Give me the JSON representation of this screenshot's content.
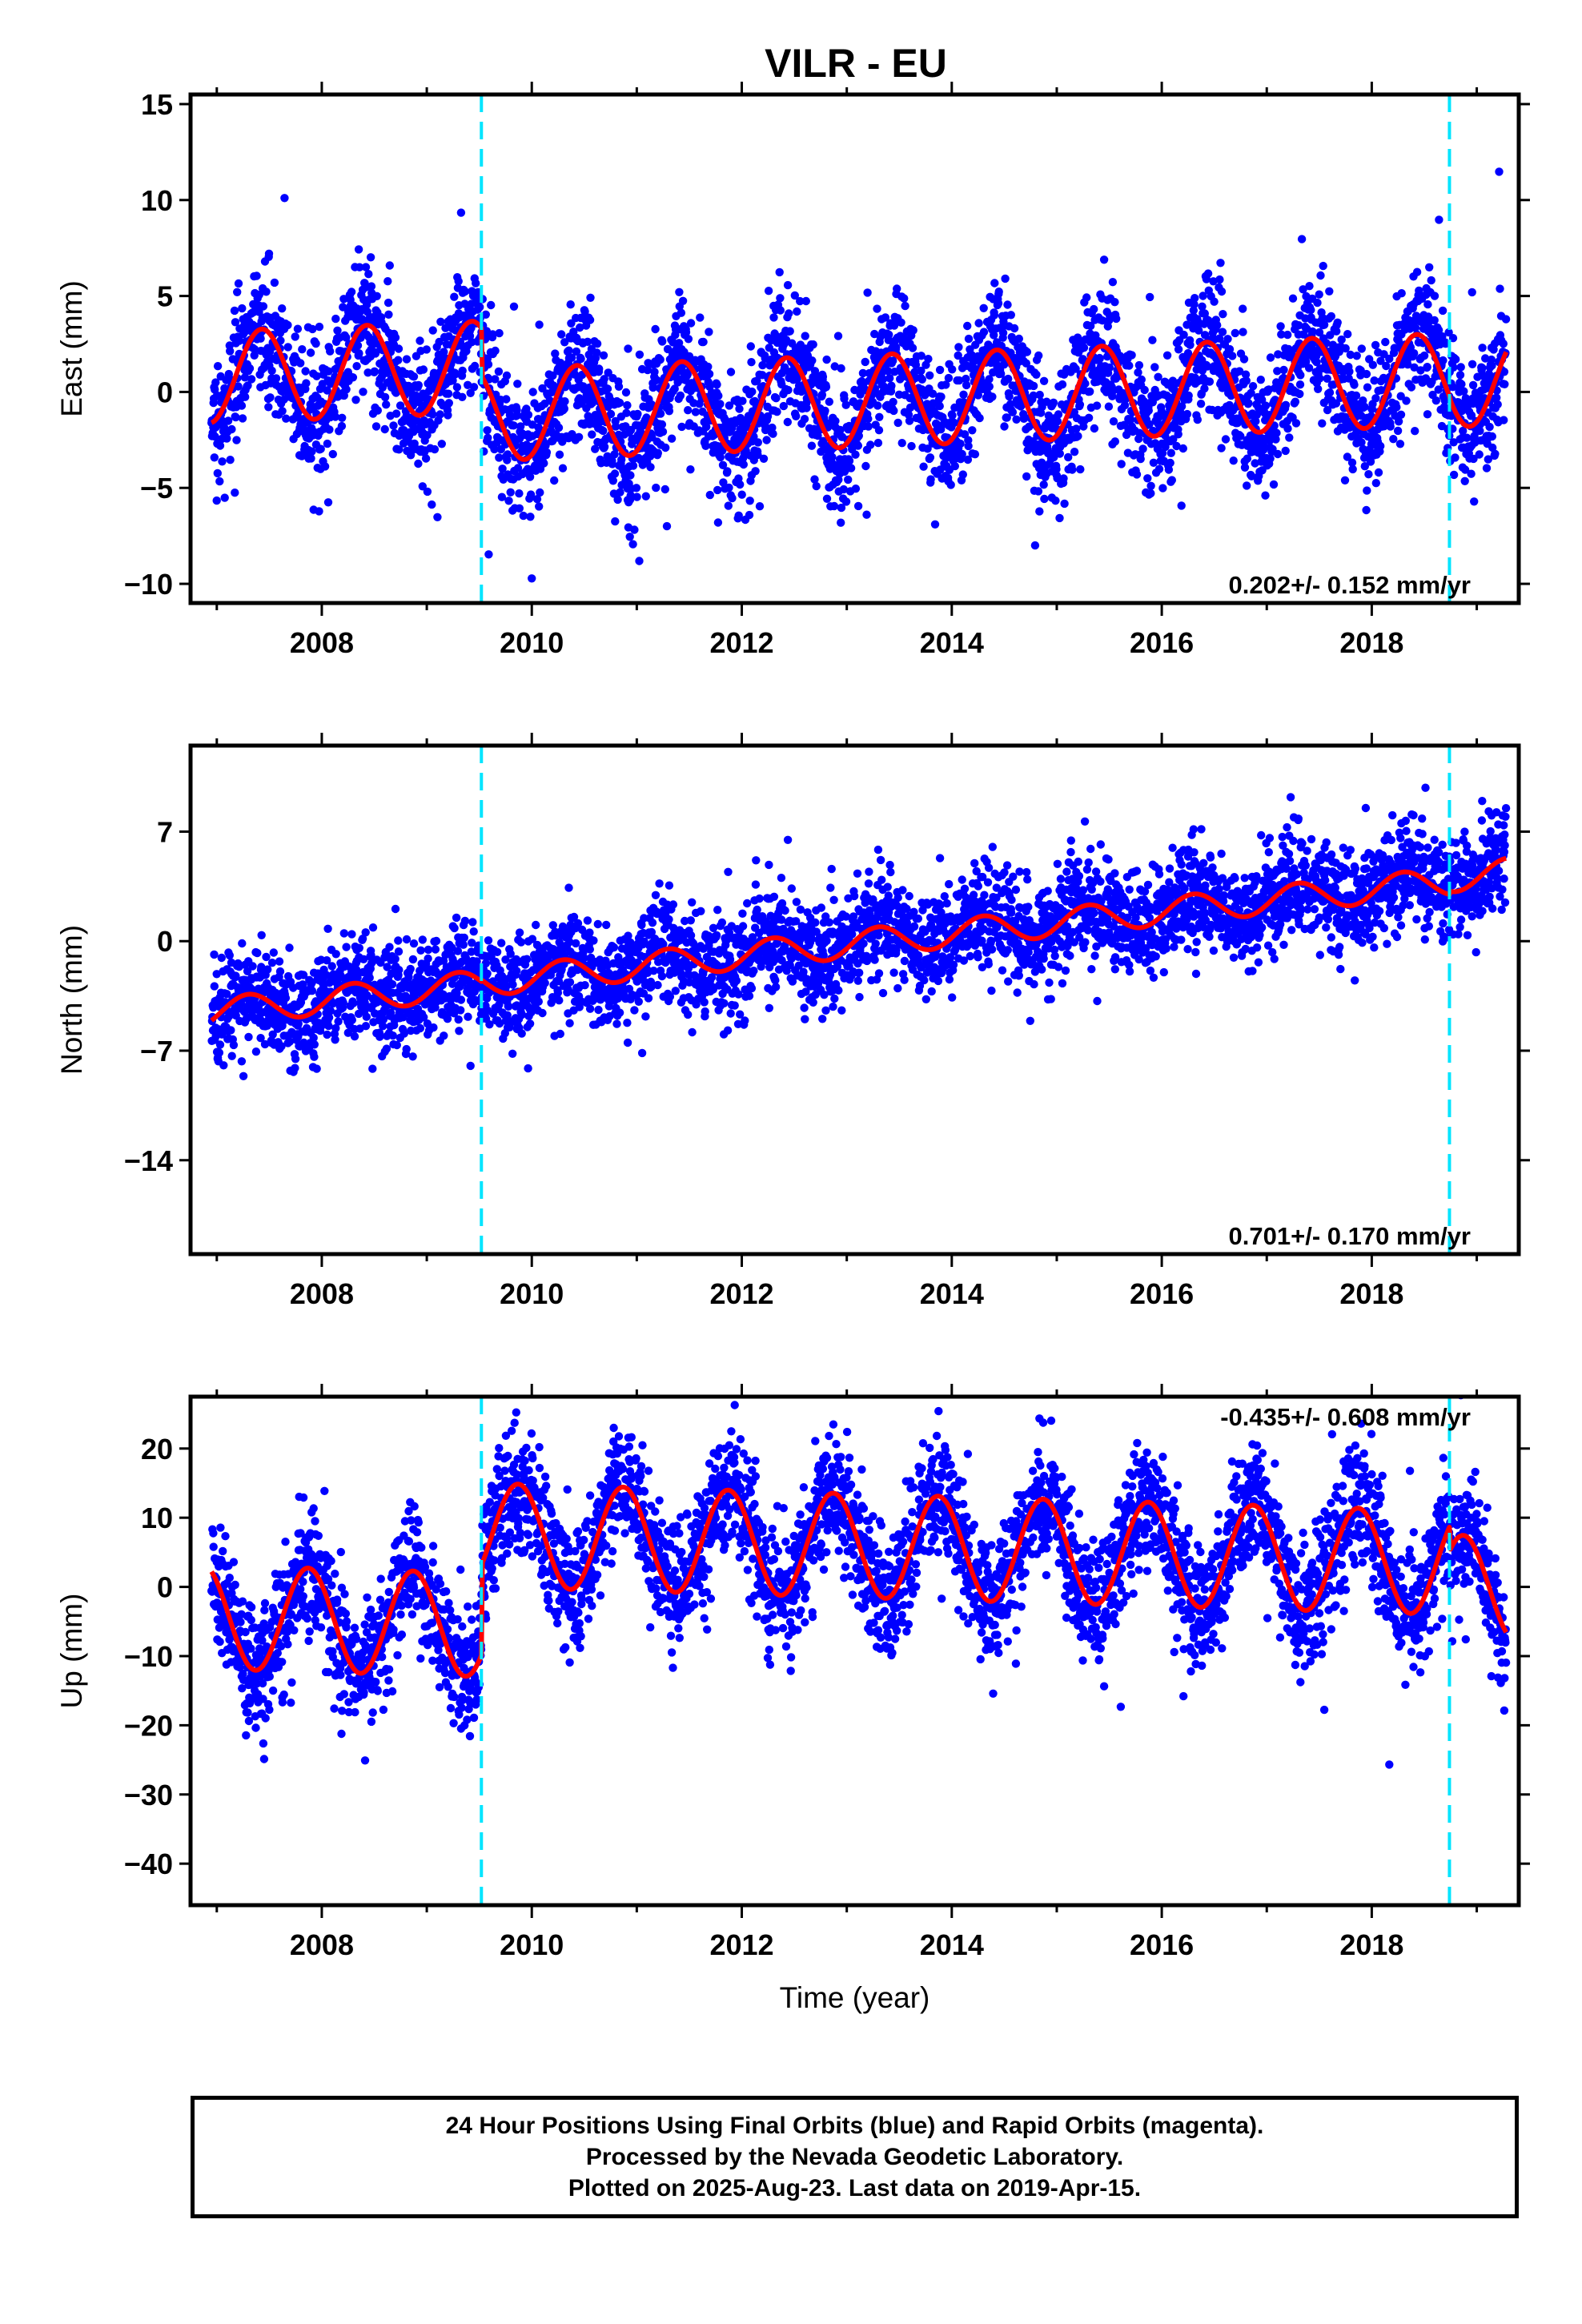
{
  "page": {
    "title": "VILR - EU"
  },
  "colors": {
    "points": "#0000ff",
    "model": "#ff0000",
    "breaks": "#00e5ff",
    "frame": "#000000"
  },
  "chart_data": [
    {
      "type": "scatter",
      "title": "VILR - EU",
      "ylabel": "East (mm)",
      "xlabel": "",
      "xlim": [
        2006.75,
        2019.4
      ],
      "ylim": [
        -11,
        15.5
      ],
      "yticks": [
        15,
        10,
        5,
        0,
        -5,
        -10
      ],
      "xticks": [
        2008,
        2010,
        2012,
        2014,
        2016,
        2018
      ],
      "breaks": [
        2009.52,
        2018.74
      ],
      "rate_text": "0.202+/- 0.152 mm/yr",
      "rate_position": "bottom-right",
      "model": {
        "name": "",
        "seg_offsets": [
          2.0,
          -0.5,
          -0.6
        ],
        "amplitude": 2.4,
        "trend": 0.202,
        "phase": 0.18,
        "noise": 1.7
      },
      "series": [
        {
          "name": "Final Orbits (blue)",
          "x_range": [
            2006.95,
            2019.28
          ],
          "y_approx": "seasonal + trend"
        }
      ]
    },
    {
      "type": "scatter",
      "title": "",
      "ylabel": "North (mm)",
      "xlabel": "",
      "xlim": [
        2006.75,
        2019.4
      ],
      "ylim": [
        -20,
        12.5
      ],
      "yticks": [
        7,
        0,
        -7,
        -14
      ],
      "xticks": [
        2008,
        2010,
        2012,
        2014,
        2016,
        2018
      ],
      "breaks": [
        2009.52,
        2018.74
      ],
      "rate_text": "0.701+/- 0.170 mm/yr",
      "rate_position": "bottom-right",
      "model": {
        "name": "",
        "seg_offsets": [
          -0.3,
          -0.2,
          0.0
        ],
        "amplitude": 0.9,
        "trend": 0.701,
        "phase": 0.05,
        "noise": 1.6
      },
      "series": [
        {
          "name": "Final Orbits (blue)",
          "x_range": [
            2006.95,
            2019.28
          ],
          "y_approx": "seasonal + trend"
        }
      ]
    },
    {
      "type": "scatter",
      "title": "",
      "ylabel": "Up (mm)",
      "xlabel": "Time (year)",
      "xlim": [
        2006.75,
        2019.4
      ],
      "ylim": [
        -46,
        27.5
      ],
      "yticks": [
        20,
        10,
        0,
        -10,
        -20,
        -30,
        -40
      ],
      "xticks": [
        2008,
        2010,
        2012,
        2014,
        2016,
        2018
      ],
      "breaks": [
        2009.52,
        2018.74
      ],
      "rate_text": "-0.435+/- 0.608 mm/yr",
      "rate_position": "top-right",
      "model": {
        "name": "",
        "seg_offsets": [
          -7.0,
          6.0,
          2.5
        ],
        "amplitude": 7.5,
        "trend": -0.435,
        "phase": 0.62,
        "noise": 4.5
      },
      "series": [
        {
          "name": "Final Orbits (blue)",
          "x_range": [
            2006.95,
            2019.28
          ],
          "y_approx": "seasonal + trend"
        }
      ]
    }
  ],
  "footer": {
    "line1": "24 Hour Positions Using Final Orbits (blue) and Rapid Orbits (magenta).",
    "line2": "Processed by the Nevada Geodetic Laboratory.",
    "line3": "Plotted on 2025-Aug-23. Last data on 2019-Apr-15."
  }
}
